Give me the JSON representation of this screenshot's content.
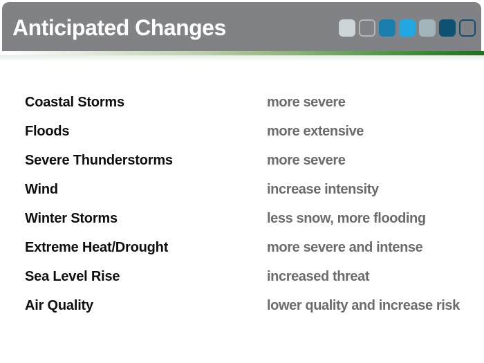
{
  "slide": {
    "title": "Anticipated Changes",
    "header_bg": "#808285",
    "accent_squares": [
      {
        "name": "light-silver-filled",
        "fill": "#ccd4d8",
        "border": ""
      },
      {
        "name": "light-gray-outline",
        "fill": "transparent",
        "border": "#aeb8bd"
      },
      {
        "name": "medium-blue-filled",
        "fill": "#1b7fae",
        "border": ""
      },
      {
        "name": "bright-blue-filled",
        "fill": "#22a7e0",
        "border": ""
      },
      {
        "name": "gray-blue-filled",
        "fill": "#a3b4bb",
        "border": ""
      },
      {
        "name": "dark-teal-filled",
        "fill": "#0f5170",
        "border": ""
      },
      {
        "name": "dark-teal-outline",
        "fill": "transparent",
        "border": "#0f5170"
      }
    ],
    "divider_colors": [
      "#ffffff",
      "#c3d4b4",
      "#93b77f",
      "#4f9746",
      "#1c711f"
    ]
  },
  "changes": {
    "hazard_color": "#0e0e0e",
    "change_color": "#6a6b6d",
    "rows": [
      {
        "hazard": "Coastal Storms",
        "change": "more severe"
      },
      {
        "hazard": "Floods",
        "change": "more extensive"
      },
      {
        "hazard": "Severe Thunderstorms",
        "change": "more severe"
      },
      {
        "hazard": "Wind",
        "change": "increase intensity"
      },
      {
        "hazard": "Winter Storms",
        "change": "less snow, more flooding"
      },
      {
        "hazard": "Extreme Heat/Drought",
        "change": "more severe and intense"
      },
      {
        "hazard": "Sea Level Rise",
        "change": "increased threat"
      },
      {
        "hazard": "Air Quality",
        "change": "lower quality and increase risk"
      }
    ]
  }
}
